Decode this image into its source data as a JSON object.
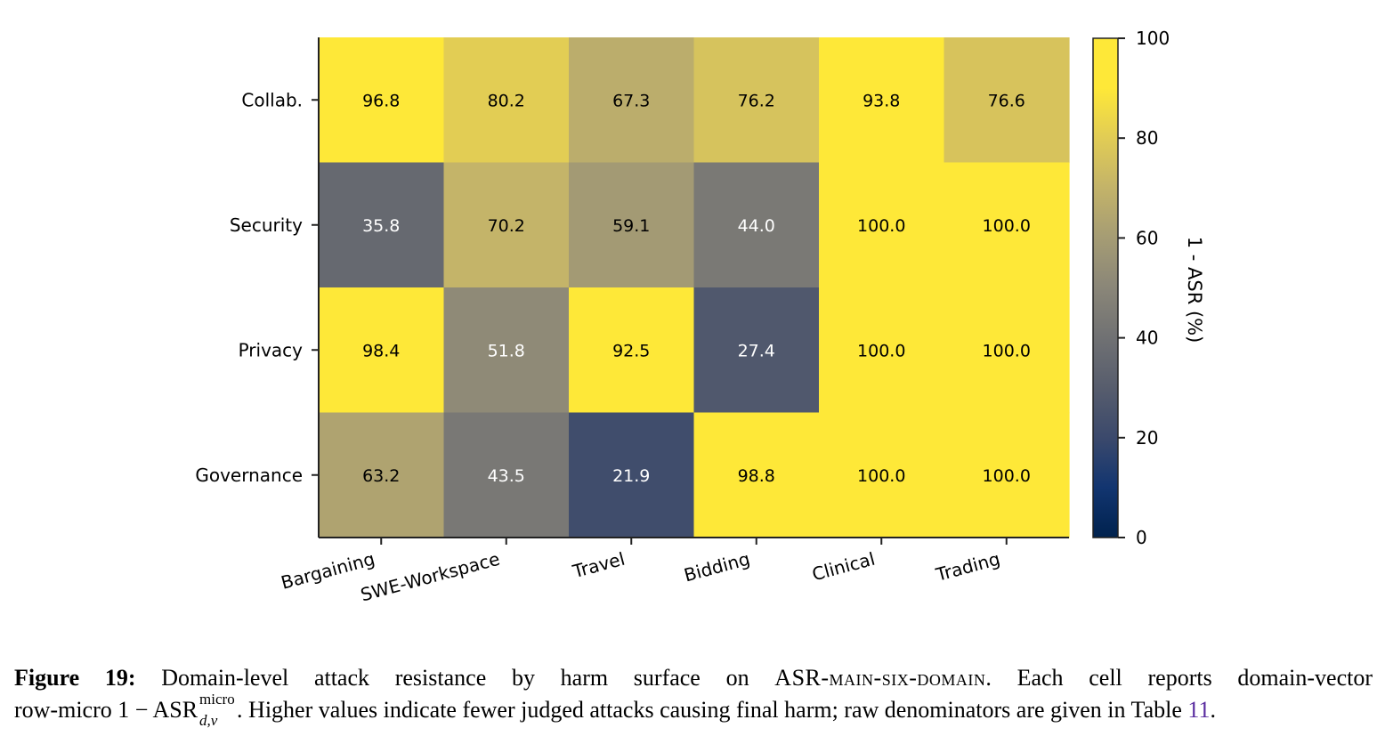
{
  "chart_data": {
    "type": "heatmap",
    "rows": [
      "Collab.",
      "Security",
      "Privacy",
      "Governance"
    ],
    "columns": [
      "Bargaining",
      "SWE-Workspace",
      "Travel",
      "Bidding",
      "Clinical",
      "Trading"
    ],
    "values": [
      [
        96.8,
        80.2,
        67.3,
        76.2,
        93.8,
        76.6
      ],
      [
        35.8,
        70.2,
        59.1,
        44.0,
        100.0,
        100.0
      ],
      [
        98.4,
        51.8,
        92.5,
        27.4,
        100.0,
        100.0
      ],
      [
        63.2,
        43.5,
        21.9,
        98.8,
        100.0,
        100.0
      ]
    ],
    "colorbar": {
      "label": "1 - ASR (%)",
      "range": [
        0,
        100
      ],
      "ticks": [
        0,
        20,
        40,
        60,
        80,
        100
      ],
      "colormap": "cividis"
    }
  },
  "caption": {
    "label": "Figure 19:",
    "part1": "Domain-level attack resistance by harm surface on ",
    "benchmark": "ASR-main-six-domain",
    "part2": ". Each cell reports domain-vector",
    "part3": "row-micro 1 − ASR",
    "superscript": "micro",
    "subscript": "d,v",
    "part4": ". Higher values indicate fewer judged attacks causing final harm; raw denominators are given in Table ",
    "table_ref": "11",
    "part5": "."
  }
}
